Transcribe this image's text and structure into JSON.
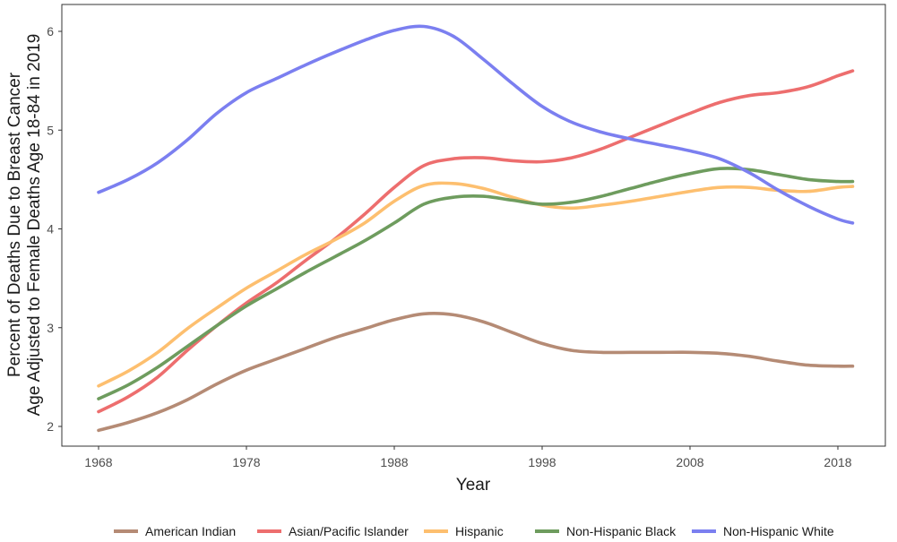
{
  "chart_data": {
    "type": "line",
    "title": "",
    "xlabel": "Year",
    "ylabel_lines": [
      "Percent of Deaths Due to Breast Cancer",
      "Age Adjusted to Female Deaths Age 18-84 in 2019"
    ],
    "xlim": [
      1968,
      2019
    ],
    "ylim": [
      2,
      6
    ],
    "x_ticks": [
      1968,
      1978,
      1988,
      1998,
      2008,
      2018
    ],
    "y_ticks": [
      2,
      3,
      4,
      5,
      6
    ],
    "grid": false,
    "legend_position": "bottom",
    "x": [
      1968,
      1970,
      1972,
      1974,
      1976,
      1978,
      1980,
      1982,
      1984,
      1986,
      1988,
      1990,
      1992,
      1994,
      1996,
      1998,
      2000,
      2002,
      2004,
      2006,
      2008,
      2010,
      2012,
      2014,
      2016,
      2018,
      2019
    ],
    "series": [
      {
        "name": "American Indian",
        "color": "#b58b75",
        "values": [
          1.96,
          2.04,
          2.14,
          2.27,
          2.43,
          2.57,
          2.68,
          2.79,
          2.9,
          2.99,
          3.08,
          3.14,
          3.13,
          3.06,
          2.95,
          2.84,
          2.77,
          2.75,
          2.75,
          2.75,
          2.75,
          2.74,
          2.71,
          2.66,
          2.62,
          2.61,
          2.61
        ]
      },
      {
        "name": "Asian/Pacific Islander",
        "color": "#ed6e6e",
        "values": [
          2.15,
          2.3,
          2.5,
          2.77,
          3.02,
          3.25,
          3.45,
          3.68,
          3.9,
          4.15,
          4.42,
          4.64,
          4.71,
          4.72,
          4.69,
          4.68,
          4.72,
          4.81,
          4.93,
          5.05,
          5.17,
          5.28,
          5.35,
          5.38,
          5.44,
          5.55,
          5.6
        ]
      },
      {
        "name": "Hispanic",
        "color": "#fdbf6f",
        "values": [
          2.41,
          2.56,
          2.75,
          2.99,
          3.2,
          3.4,
          3.57,
          3.74,
          3.89,
          4.06,
          4.28,
          4.44,
          4.46,
          4.41,
          4.32,
          4.24,
          4.21,
          4.24,
          4.28,
          4.33,
          4.38,
          4.42,
          4.42,
          4.39,
          4.38,
          4.42,
          4.43
        ]
      },
      {
        "name": "Non-Hispanic Black",
        "color": "#6e9c5e",
        "values": [
          2.28,
          2.42,
          2.6,
          2.81,
          3.02,
          3.22,
          3.39,
          3.56,
          3.72,
          3.88,
          4.06,
          4.25,
          4.32,
          4.33,
          4.29,
          4.25,
          4.27,
          4.33,
          4.41,
          4.49,
          4.56,
          4.61,
          4.6,
          4.55,
          4.5,
          4.48,
          4.48
        ]
      },
      {
        "name": "Non-Hispanic White",
        "color": "#7b7ff0",
        "values": [
          4.37,
          4.5,
          4.67,
          4.9,
          5.17,
          5.38,
          5.52,
          5.66,
          5.79,
          5.91,
          6.01,
          6.05,
          5.95,
          5.72,
          5.47,
          5.24,
          5.08,
          4.98,
          4.91,
          4.85,
          4.79,
          4.71,
          4.57,
          4.39,
          4.23,
          4.1,
          4.06
        ]
      }
    ]
  }
}
